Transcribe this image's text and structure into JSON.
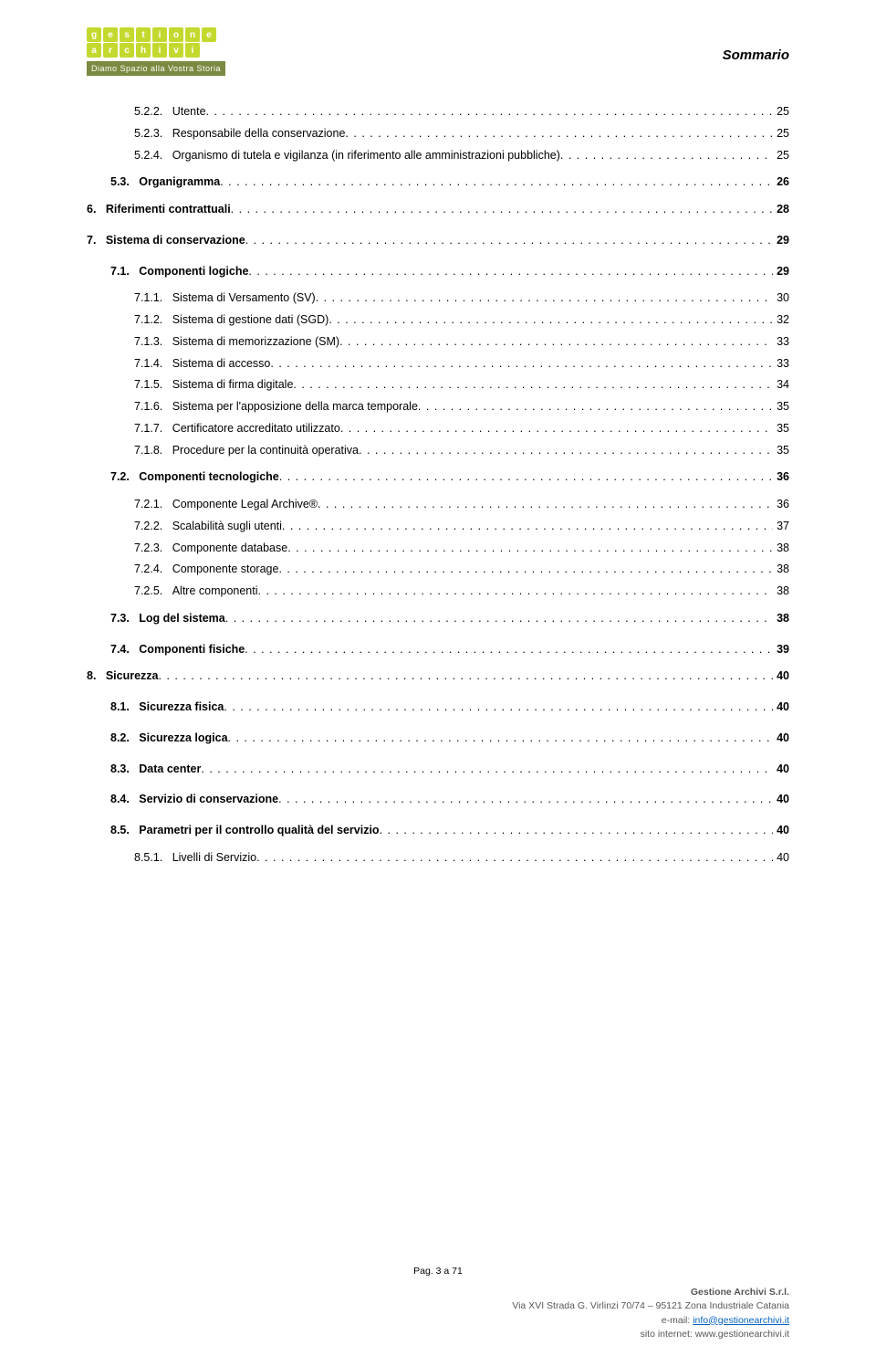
{
  "header": {
    "logo_text_row1": "gestione",
    "logo_text_row2": "archivi",
    "tagline": "Diamo Spazio alla Vostra Storia",
    "section_title": "Sommario"
  },
  "toc": [
    {
      "lvl": 3,
      "num": "5.2.2.",
      "label": "Utente",
      "page": "25"
    },
    {
      "lvl": 3,
      "num": "5.2.3.",
      "label": "Responsabile della conservazione",
      "page": "25"
    },
    {
      "lvl": 3,
      "num": "5.2.4.",
      "label": "Organismo di tutela e vigilanza (in riferimento alle amministrazioni pubbliche)",
      "page": "25"
    },
    {
      "lvl": 2,
      "num": "5.3.",
      "label": "Organigramma",
      "page": "26",
      "gapBefore": "small"
    },
    {
      "lvl": 1,
      "num": "6.",
      "label": "Riferimenti contrattuali",
      "page": "28",
      "gapBefore": "small"
    },
    {
      "lvl": 1,
      "num": "7.",
      "label": "Sistema di conservazione",
      "page": "29",
      "gapBefore": "med"
    },
    {
      "lvl": 2,
      "num": "7.1.",
      "label": "Componenti logiche",
      "page": "29",
      "gapBefore": "med"
    },
    {
      "lvl": 3,
      "num": "7.1.1.",
      "label": "Sistema di Versamento (SV)",
      "page": "30",
      "gapBefore": "small"
    },
    {
      "lvl": 3,
      "num": "7.1.2.",
      "label": "Sistema di gestione dati (SGD)",
      "page": "32"
    },
    {
      "lvl": 3,
      "num": "7.1.3.",
      "label": "Sistema di memorizzazione (SM)",
      "page": "33"
    },
    {
      "lvl": 3,
      "num": "7.1.4.",
      "label": "Sistema di accesso",
      "page": "33"
    },
    {
      "lvl": 3,
      "num": "7.1.5.",
      "label": "Sistema di firma digitale",
      "page": "34"
    },
    {
      "lvl": 3,
      "num": "7.1.6.",
      "label": "Sistema per l'apposizione della marca temporale",
      "page": "35"
    },
    {
      "lvl": 3,
      "num": "7.1.7.",
      "label": "Certificatore accreditato utilizzato",
      "page": "35"
    },
    {
      "lvl": 3,
      "num": "7.1.8.",
      "label": "Procedure per la continuità operativa",
      "page": "35"
    },
    {
      "lvl": 2,
      "num": "7.2.",
      "label": "Componenti tecnologiche",
      "page": "36",
      "gapBefore": "small"
    },
    {
      "lvl": 3,
      "num": "7.2.1.",
      "label": "Componente Legal Archive®",
      "page": "36",
      "gapBefore": "small"
    },
    {
      "lvl": 3,
      "num": "7.2.2.",
      "label": "Scalabilità sugli utenti",
      "page": "37"
    },
    {
      "lvl": 3,
      "num": "7.2.3.",
      "label": "Componente database",
      "page": "38"
    },
    {
      "lvl": 3,
      "num": "7.2.4.",
      "label": "Componente storage",
      "page": "38"
    },
    {
      "lvl": 3,
      "num": "7.2.5.",
      "label": "Altre componenti",
      "page": "38"
    },
    {
      "lvl": 2,
      "num": "7.3.",
      "label": "Log del sistema",
      "page": "38",
      "gapBefore": "small"
    },
    {
      "lvl": 2,
      "num": "7.4.",
      "label": "Componenti fisiche",
      "page": "39",
      "gapBefore": "med"
    },
    {
      "lvl": 1,
      "num": "8.",
      "label": "Sicurezza",
      "page": "40",
      "gapBefore": "small"
    },
    {
      "lvl": 2,
      "num": "8.1.",
      "label": "Sicurezza fisica",
      "page": "40",
      "gapBefore": "med"
    },
    {
      "lvl": 2,
      "num": "8.2.",
      "label": "Sicurezza logica",
      "page": "40",
      "gapBefore": "med"
    },
    {
      "lvl": 2,
      "num": "8.3.",
      "label": "Data center",
      "page": "40",
      "gapBefore": "med"
    },
    {
      "lvl": 2,
      "num": "8.4.",
      "label": "Servizio di conservazione",
      "page": "40",
      "gapBefore": "med"
    },
    {
      "lvl": 2,
      "num": "8.5.",
      "label": "Parametri per il controllo qualità del servizio",
      "page": "40",
      "gapBefore": "med"
    },
    {
      "lvl": 3,
      "num": "8.5.1.",
      "label": "Livelli di Servizio",
      "page": "40",
      "gapBefore": "small"
    }
  ],
  "footer": {
    "page_indicator": "Pag. 3 a 71",
    "company_name": "Gestione Archivi S.r.l.",
    "address": "Via XVI Strada G. Virlinzi 70/74 – 95121 Zona Industriale Catania",
    "email_label": "e-mail: ",
    "email": "info@gestionearchivi.it",
    "website_label": "sito internet: ",
    "website": "www.gestionearchivi.it"
  },
  "colors": {
    "logo_green": "#c4d92e",
    "tagline_bg": "#7a8a40",
    "link": "#0563c1",
    "footer_grey": "#575757"
  }
}
